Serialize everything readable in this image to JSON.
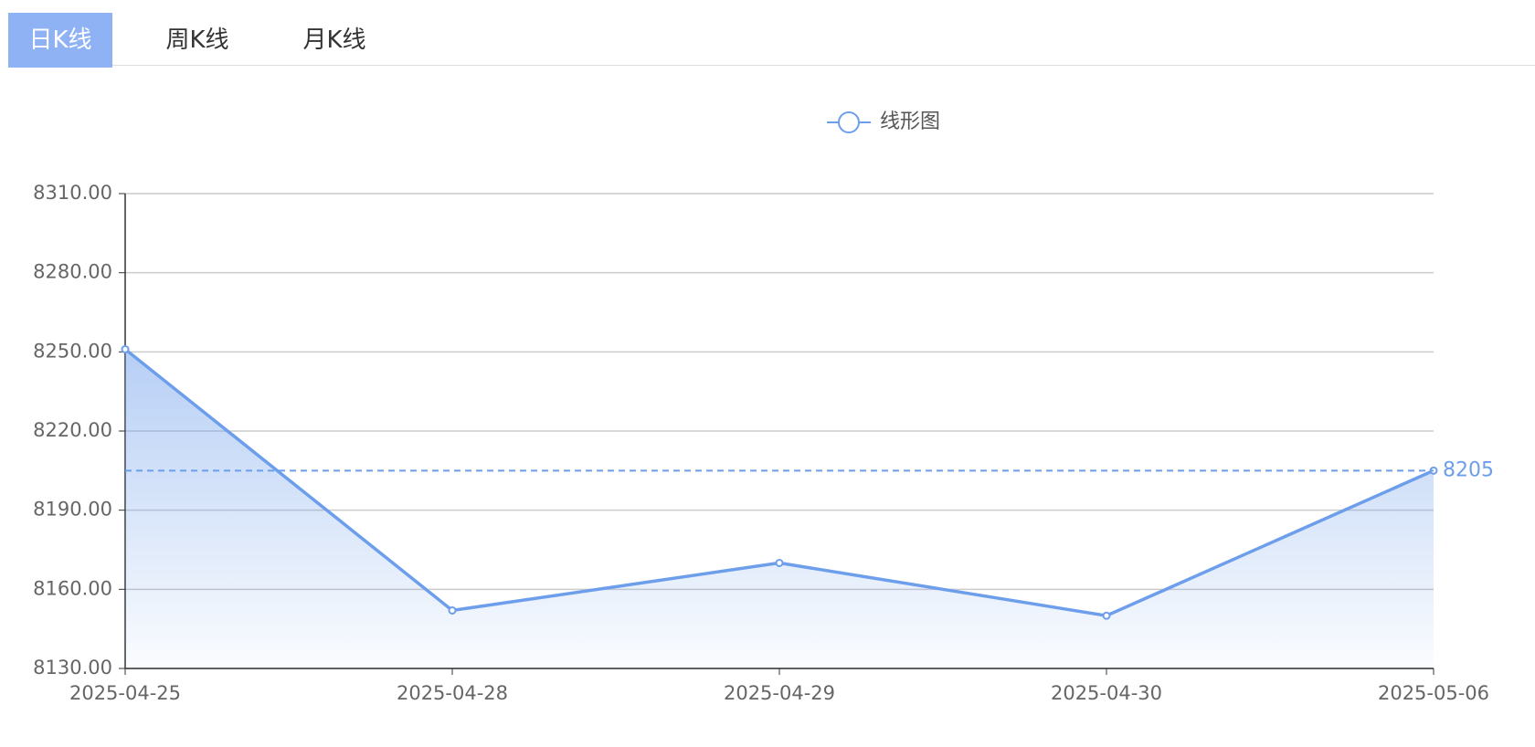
{
  "tabs": [
    "日K线",
    "周K线",
    "月K线"
  ],
  "chart_data": {
    "type": "line",
    "categories": [
      "2025-04-25",
      "2025-04-28",
      "2025-04-29",
      "2025-04-30",
      "2025-05-06"
    ],
    "series": [
      {
        "name": "线形图",
        "color": "#6d9eeb",
        "values": [
          8251,
          8152,
          8170,
          8150,
          8205
        ]
      }
    ],
    "mark_line": 8205,
    "ylim": [
      8130,
      8310
    ],
    "yticks": [
      {
        "value": 8130,
        "label": "8130.00"
      },
      {
        "value": 8160,
        "label": "8160.00"
      },
      {
        "value": 8190,
        "label": "8190.00"
      },
      {
        "value": 8220,
        "label": "8220.00"
      },
      {
        "value": 8250,
        "label": "8250.00"
      },
      {
        "value": 8280,
        "label": "8280.00"
      },
      {
        "value": 8310,
        "label": "8310.00"
      }
    ],
    "grid": true
  }
}
